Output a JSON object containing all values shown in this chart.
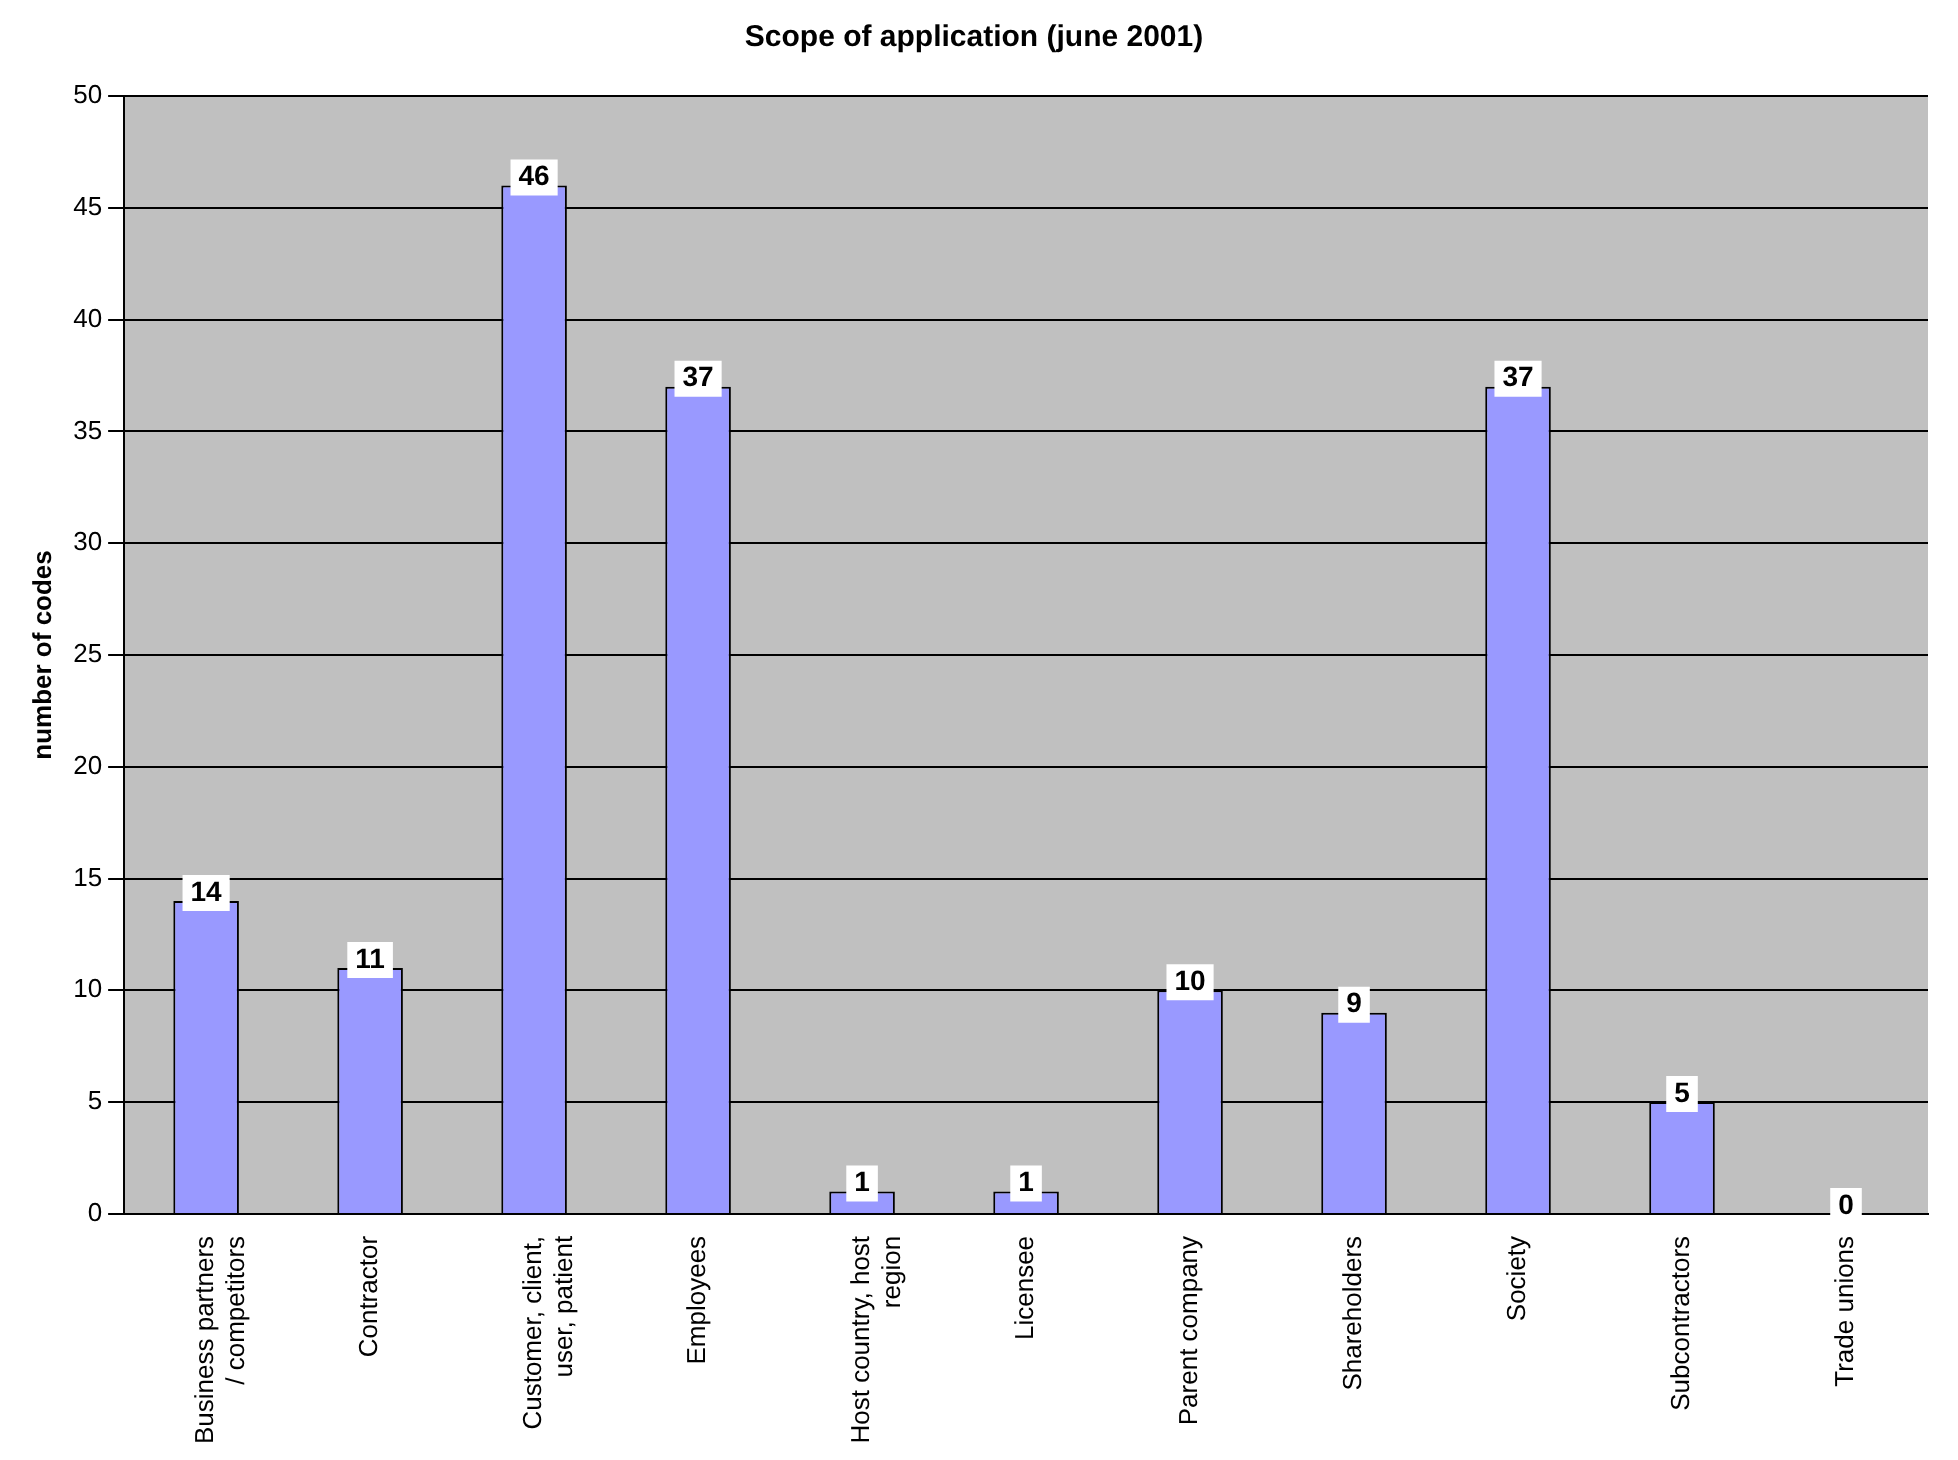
{
  "chart_data": {
    "type": "bar",
    "title": "Scope of application (june 2001)",
    "ylabel": "number of codes",
    "categories": [
      "Business partners / competitors",
      "Contractor",
      "Customer, client, user, patient",
      "Employees",
      "Host country, host region",
      "Licensee",
      "Parent company",
      "Shareholders",
      "Society",
      "Subcontractors",
      "Trade unions"
    ],
    "values": [
      14,
      11,
      46,
      37,
      1,
      1,
      10,
      9,
      37,
      5,
      0
    ],
    "color": "#9999ff",
    "ylim": [
      0,
      50
    ],
    "yticks": [
      0,
      5,
      10,
      15,
      20,
      25,
      30,
      35,
      40,
      45,
      50
    ],
    "grid": "y",
    "data_labels": true,
    "legend": false
  }
}
